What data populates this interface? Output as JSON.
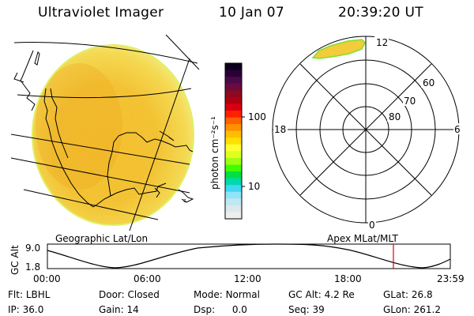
{
  "header": {
    "title": "Ultraviolet Imager",
    "date": "10 Jan 07",
    "time": "20:39:20 UT"
  },
  "colorbar": {
    "unit_label": "photon cm⁻²s⁻¹",
    "ticks": [
      "100",
      "10"
    ],
    "colors": [
      "#0a001e",
      "#2a0035",
      "#4a0a4a",
      "#6a0a40",
      "#8a0a20",
      "#b00010",
      "#d80010",
      "#ff2000",
      "#ff6000",
      "#ff9000",
      "#ffbe00",
      "#ffe000",
      "#ffff30",
      "#e0ff20",
      "#a0ff10",
      "#40ff00",
      "#00e040",
      "#00d8b0",
      "#40d8f0",
      "#90e4f8",
      "#c0e8f0",
      "#dde8ec",
      "#eeeeee"
    ]
  },
  "geo_map": {
    "label": "Geographic Lat/Lon"
  },
  "polar": {
    "mlt_labels": {
      "top": "12",
      "left": "18",
      "right": "6",
      "bottom": "0"
    },
    "lat_labels": [
      "60",
      "70",
      "80"
    ],
    "label": "Apex MLat/MLT"
  },
  "altitude_plot": {
    "ylabel": "GC Alt",
    "yticks": [
      "9.0",
      "1.8"
    ],
    "xticks": [
      "00:00",
      "06:00",
      "12:00",
      "18:00",
      "23:59"
    ]
  },
  "status": {
    "filter": {
      "label": "Flt:",
      "value": "LBHL"
    },
    "ip": {
      "label": "IP:",
      "value": "36.0"
    },
    "door": {
      "label": "Door:",
      "value": "Closed"
    },
    "gain": {
      "label": "Gain:",
      "value": "14"
    },
    "mode": {
      "label": "Mode:",
      "value": "Normal"
    },
    "dsp": {
      "label": "Dsp:",
      "value": "0.0"
    },
    "gc_alt": {
      "label": "GC Alt:",
      "value": "4.2 Re"
    },
    "seq": {
      "label": "Seq:",
      "value": "39"
    },
    "glat": {
      "label": "GLat:",
      "value": "26.8"
    },
    "glon": {
      "label": "GLon:",
      "value": "261.2"
    }
  }
}
